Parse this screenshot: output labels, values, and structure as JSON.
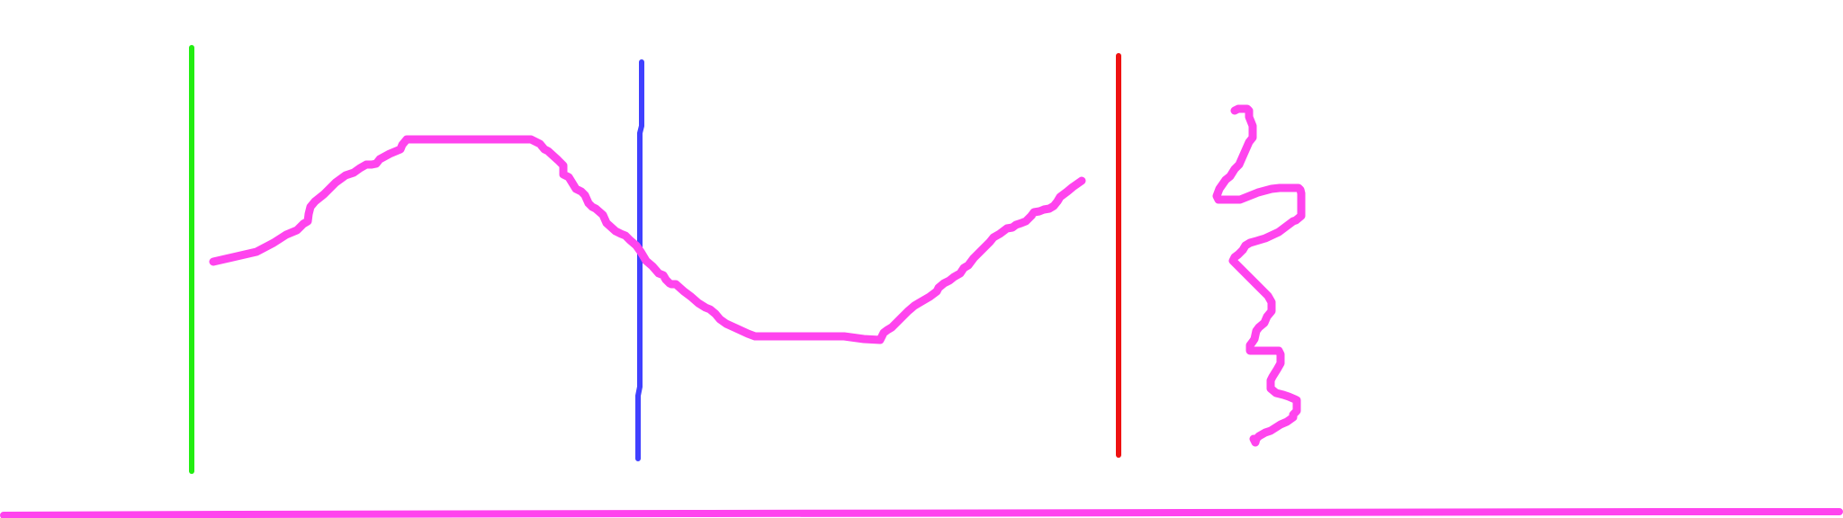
{
  "colors": {
    "background": "#ffffff",
    "green_line": "#22ee11",
    "blue_line": "#4040ff",
    "red_line": "#ee1111",
    "magenta_stroke": "#ff44ee"
  }
}
